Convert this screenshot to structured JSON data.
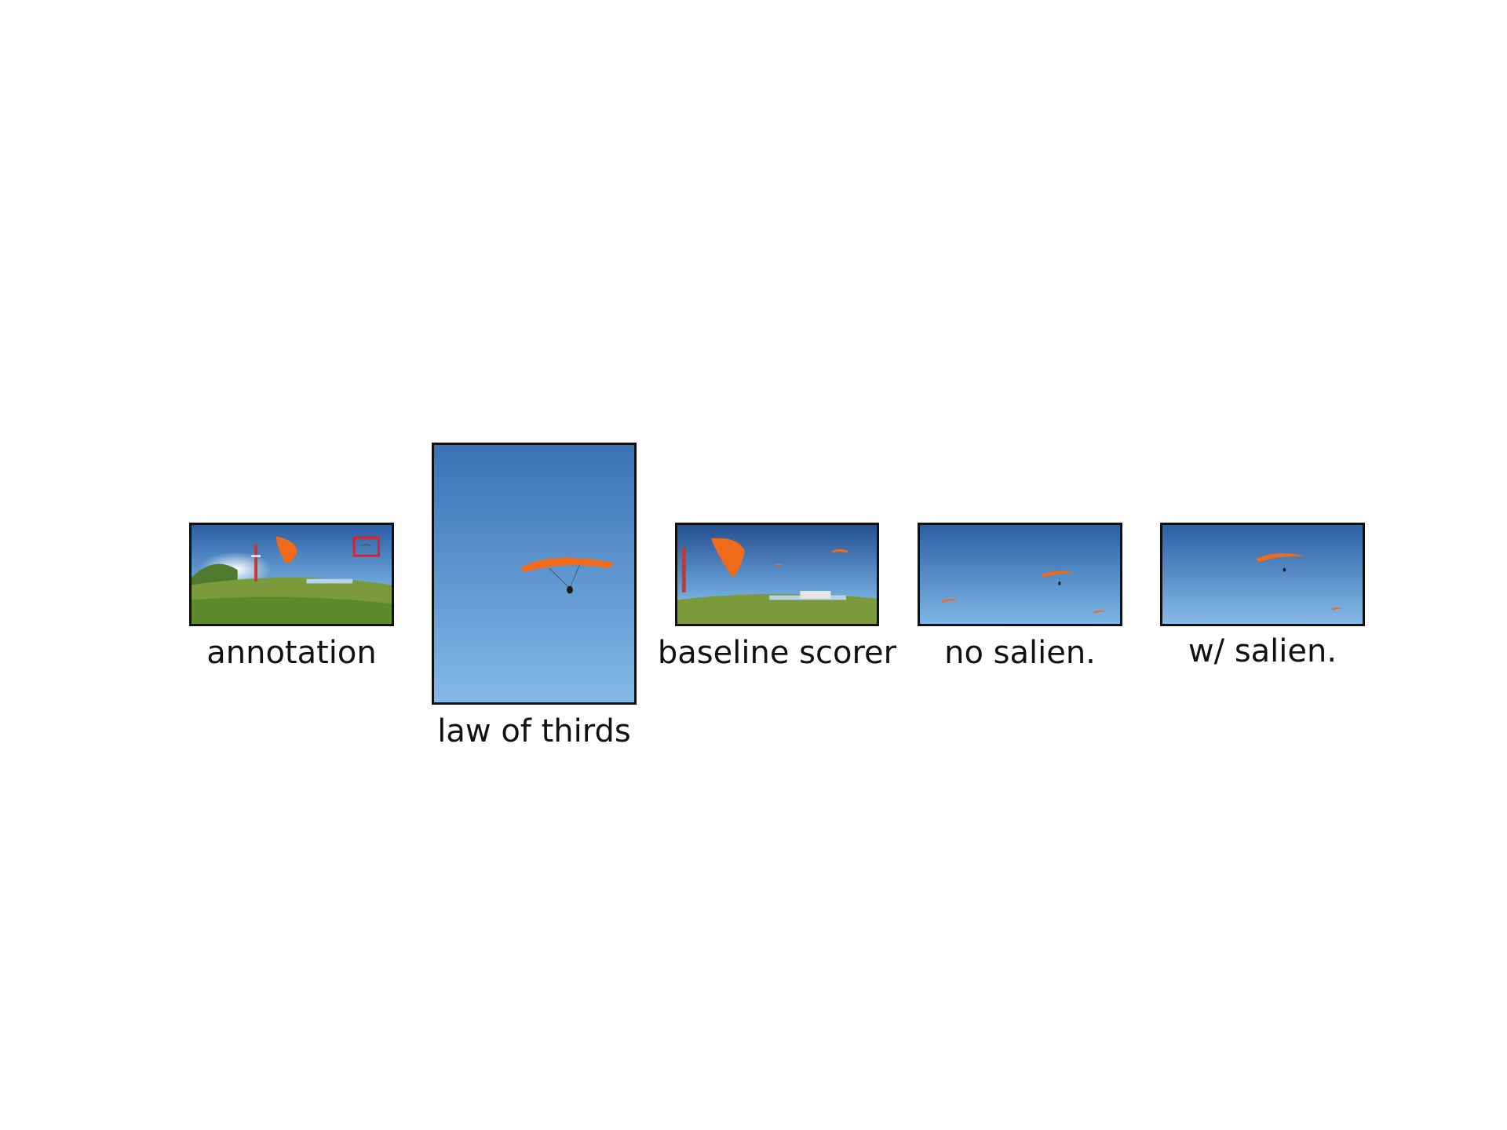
{
  "panels": [
    {
      "id": "annotation",
      "caption": "annotation"
    },
    {
      "id": "law-of-thirds",
      "caption": "law of thirds"
    },
    {
      "id": "baseline-scorer",
      "caption": "baseline scorer"
    },
    {
      "id": "no-salien",
      "caption": "no salien."
    },
    {
      "id": "w-salien",
      "caption": "w/ salien."
    }
  ],
  "colors": {
    "sky_top": "#2a5fa5",
    "sky_bottom": "#7fb6e6",
    "paraglider": "#f06a1c",
    "grass": "#7a9a3c",
    "annotation_box": "#e0202a",
    "border": "#111111"
  }
}
